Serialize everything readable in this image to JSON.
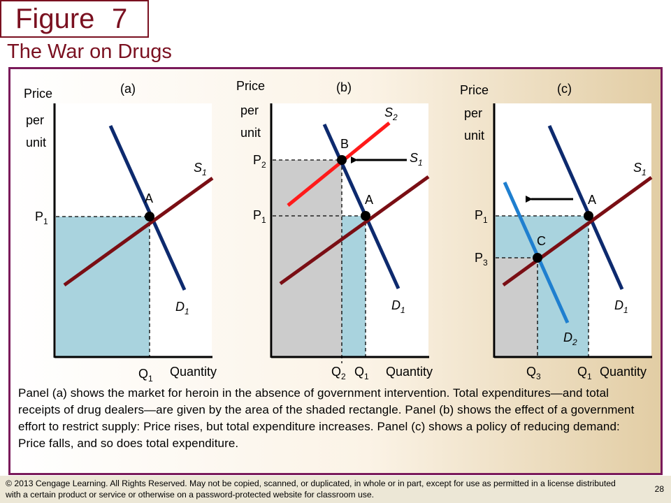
{
  "figure": {
    "word": "Figure",
    "number": "7"
  },
  "title": "The War on Drugs",
  "panels": [
    {
      "id": "a",
      "panel_label": "(a)",
      "axis": {
        "y_label": [
          "Price",
          "per",
          "unit"
        ],
        "x_label": "Quantity"
      },
      "curves": [
        {
          "id": "D1",
          "base": "D",
          "sub": "1",
          "type": "demand",
          "color": "#0d2a6e"
        },
        {
          "id": "S1",
          "base": "S",
          "sub": "1",
          "type": "supply",
          "color": "#7a0e14"
        }
      ],
      "points": [
        {
          "label": "A",
          "price": "P1",
          "quantity": "Q1"
        }
      ],
      "price_ticks": [
        {
          "base": "P",
          "sub": "1"
        }
      ],
      "quantity_ticks": [
        {
          "base": "Q",
          "sub": "1"
        }
      ],
      "shading": [
        {
          "area": "expenditure",
          "color": "#a9d3de"
        }
      ]
    },
    {
      "id": "b",
      "panel_label": "(b)",
      "axis": {
        "y_label": [
          "Price",
          "per",
          "unit"
        ],
        "x_label": "Quantity"
      },
      "curves": [
        {
          "id": "D1",
          "base": "D",
          "sub": "1",
          "type": "demand",
          "color": "#0d2a6e"
        },
        {
          "id": "S1",
          "base": "S",
          "sub": "1",
          "type": "supply",
          "color": "#7a0e14"
        },
        {
          "id": "S2",
          "base": "S",
          "sub": "2",
          "type": "supply",
          "color": "#ff1a1a"
        }
      ],
      "points": [
        {
          "label": "A",
          "price": "P1",
          "quantity": "Q1"
        },
        {
          "label": "B",
          "price": "P2",
          "quantity": "Q2"
        }
      ],
      "price_ticks": [
        {
          "base": "P",
          "sub": "2"
        },
        {
          "base": "P",
          "sub": "1"
        }
      ],
      "quantity_ticks": [
        {
          "base": "Q",
          "sub": "2"
        },
        {
          "base": "Q",
          "sub": "1"
        }
      ],
      "shift": "supply-left",
      "shading": [
        {
          "area": "new-expenditure",
          "color": "#cccccc"
        },
        {
          "area": "old-expenditure",
          "color": "#a9d3de"
        }
      ]
    },
    {
      "id": "c",
      "panel_label": "(c)",
      "axis": {
        "y_label": [
          "Price",
          "per",
          "unit"
        ],
        "x_label": "Quantity"
      },
      "curves": [
        {
          "id": "D1",
          "base": "D",
          "sub": "1",
          "type": "demand",
          "color": "#0d2a6e"
        },
        {
          "id": "D2",
          "base": "D",
          "sub": "2",
          "type": "demand",
          "color": "#1f7fcf"
        },
        {
          "id": "S1",
          "base": "S",
          "sub": "1",
          "type": "supply",
          "color": "#7a0e14"
        }
      ],
      "points": [
        {
          "label": "A",
          "price": "P1",
          "quantity": "Q1"
        },
        {
          "label": "C",
          "price": "P3",
          "quantity": "Q3"
        }
      ],
      "price_ticks": [
        {
          "base": "P",
          "sub": "1"
        },
        {
          "base": "P",
          "sub": "3"
        }
      ],
      "quantity_ticks": [
        {
          "base": "Q",
          "sub": "3"
        },
        {
          "base": "Q",
          "sub": "1"
        }
      ],
      "shift": "demand-left",
      "shading": [
        {
          "area": "old-expenditure",
          "color": "#a9d3de"
        },
        {
          "area": "new-expenditure",
          "color": "#cccccc"
        }
      ]
    }
  ],
  "caption": "Panel (a) shows the market for heroin in the absence of government intervention. Total expenditures—and total receipts of drug dealers—are given by the area of the shaded rectangle. Panel (b) shows the effect of a government effort to restrict supply: Price rises, but total expenditure increases. Panel (c) shows a policy of reducing demand: Price falls, and so does total expenditure.",
  "footer": {
    "copyright": "© 2013 Cengage Learning. All Rights Reserved. May not be copied, scanned, or duplicated, in whole or in part, except for use as permitted in a license distributed with a certain product or service or otherwise on a password-protected website for classroom use.",
    "page": "28"
  }
}
